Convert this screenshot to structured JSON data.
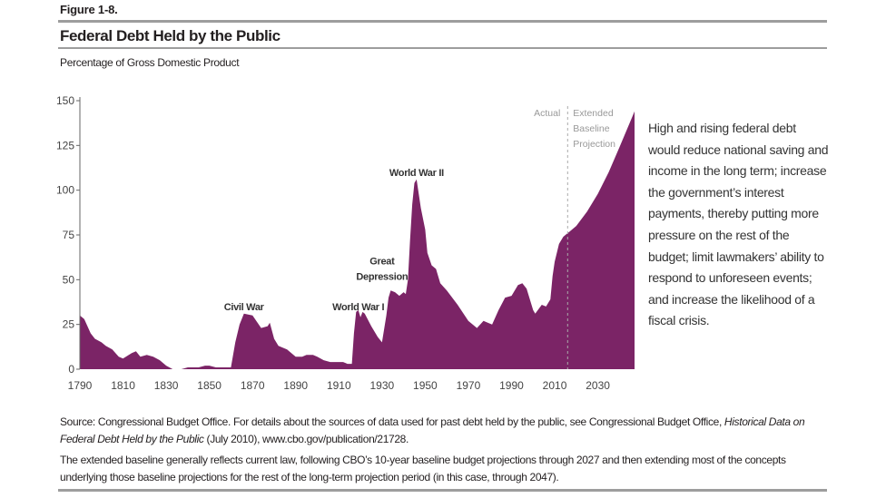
{
  "figure_label": "Figure 1-8.",
  "colors": {
    "area": "#7b2466",
    "rule": "#9d9d9d",
    "divider": "#aaaaaa"
  },
  "chart_data": {
    "type": "area",
    "title": "Federal Debt Held by the Public",
    "subtitle": "Percentage of Gross Domestic Product",
    "xlim": [
      1790,
      2047
    ],
    "ylim": [
      0,
      150
    ],
    "yticks": [
      0,
      25,
      50,
      75,
      100,
      125,
      150
    ],
    "xticks": [
      1790,
      1810,
      1830,
      1850,
      1870,
      1890,
      1910,
      1930,
      1950,
      1970,
      1990,
      2010,
      2030
    ],
    "divider_year": 2016,
    "divider_labels": {
      "left": "Actual",
      "right": [
        "Extended",
        "Baseline",
        "Projection"
      ]
    },
    "annotations": [
      {
        "text": [
          "Civil War"
        ],
        "x": 1866,
        "y": 33
      },
      {
        "text": [
          "World War I"
        ],
        "x": 1919,
        "y": 33
      },
      {
        "text": [
          "Great",
          "Depression"
        ],
        "x": 1930,
        "y": 50
      },
      {
        "text": [
          "World War II"
        ],
        "x": 1946,
        "y": 108
      }
    ],
    "x": [
      1790,
      1792,
      1795,
      1797,
      1800,
      1802,
      1805,
      1808,
      1810,
      1814,
      1816,
      1818,
      1821,
      1824,
      1827,
      1830,
      1833,
      1837,
      1840,
      1845,
      1848,
      1850,
      1853,
      1860,
      1862,
      1864,
      1866,
      1870,
      1874,
      1877,
      1878,
      1880,
      1882,
      1886,
      1890,
      1893,
      1895,
      1898,
      1900,
      1903,
      1906,
      1912,
      1914,
      1916,
      1917,
      1918,
      1919,
      1920,
      1921,
      1922,
      1925,
      1928,
      1930,
      1932,
      1933,
      1934,
      1936,
      1938,
      1940,
      1941,
      1942,
      1943,
      1944,
      1945,
      1946,
      1948,
      1950,
      1951,
      1953,
      1955,
      1957,
      1960,
      1965,
      1970,
      1974,
      1977,
      1979,
      1981,
      1984,
      1987,
      1990,
      1993,
      1995,
      1997,
      2000,
      2001,
      2004,
      2006,
      2008,
      2009,
      2010,
      2012,
      2014,
      2016,
      2017,
      2020,
      2025,
      2030,
      2035,
      2040,
      2047
    ],
    "y": [
      30,
      28,
      20,
      17,
      15,
      13,
      11,
      7,
      6,
      9,
      10,
      7,
      8,
      7,
      5,
      2,
      0,
      0,
      1,
      1,
      2,
      2,
      1,
      1,
      15,
      25,
      31,
      30,
      23,
      24,
      26,
      17,
      13,
      11,
      7,
      7,
      8,
      8,
      7,
      5,
      4,
      4,
      3,
      3,
      20,
      32,
      33,
      29,
      32,
      31,
      24,
      18,
      15,
      30,
      40,
      44,
      43,
      41,
      43,
      42,
      50,
      72,
      92,
      104,
      106,
      90,
      78,
      65,
      58,
      56,
      48,
      44,
      36,
      27,
      23,
      27,
      26,
      25,
      33,
      40,
      41,
      47,
      48,
      45,
      33,
      31,
      36,
      35,
      39,
      52,
      60,
      70,
      74,
      76,
      77,
      80,
      88,
      98,
      110,
      124,
      144
    ]
  },
  "side_text": "High and rising federal debt would reduce national saving and income in the long term; increase the government’s interest payments, thereby putting more pressure on the rest of the budget; limit lawmakers’ ability to respond to unforeseen events; and increase the likelihood of a fiscal crisis.",
  "source": {
    "prefix": "Source: Congressional Budget Office. For details about the sources of data used for past debt held by the public, see Congressional Budget Office, ",
    "italic": "Historical Data on Federal Debt Held by the Public",
    "suffix": " (July 2010), www.cbo.gov/publication/21728."
  },
  "note": "The extended baseline generally reflects current law, following CBO’s 10-year baseline budget projections through 2027 and then extending most of the concepts underlying those baseline projections for the rest of the long-term projection period (in this case, through 2047)."
}
